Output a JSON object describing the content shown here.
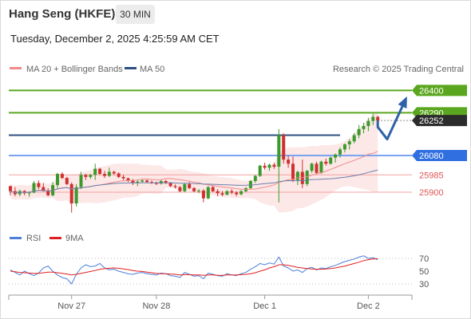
{
  "header": {
    "title": "Hang Seng (HKFE)",
    "interval": "30 MIN",
    "timestamp": "Tuesday, December 2, 2025 4:25:59 AM CET"
  },
  "chart_data": {
    "type": "candlestick",
    "legend": [
      {
        "name": "MA 20 + Bollinger Bands",
        "color": "#f08a8a"
      },
      {
        "name": "MA 50",
        "color": "#2e4f7f"
      }
    ],
    "credit": "Research © 2025 Trading Central",
    "y_range": [
      25810,
      26460
    ],
    "x_ticks": [
      {
        "label": "Nov 27",
        "index": 13
      },
      {
        "label": "Nov 28",
        "index": 31
      },
      {
        "label": "Dec 1",
        "index": 54
      },
      {
        "label": "Dec 2",
        "index": 76
      }
    ],
    "levels": [
      {
        "value": 26400,
        "label": "26400",
        "color": "#5aa61e",
        "style": "line-green"
      },
      {
        "value": 26290,
        "label": "26290",
        "color": "#5aa61e",
        "style": "line-green"
      },
      {
        "value": 26252,
        "label": "26252",
        "color": "#333333",
        "style": "last-price"
      },
      {
        "value": 26080,
        "label": "26080",
        "color": "#2f6fe0",
        "style": "line-blue"
      },
      {
        "value": 25985,
        "label": "25985",
        "color": "#e05555",
        "style": "line-red"
      },
      {
        "value": 25900,
        "label": "25900",
        "color": "#e05555",
        "style": "line-red"
      }
    ],
    "resistance_line": {
      "start_index": 0,
      "end_index": 70,
      "value": 26180
    },
    "forecast": [
      {
        "index": 78,
        "value": 26220
      },
      {
        "index": 80,
        "value": 26160
      },
      {
        "index": 84,
        "value": 26360
      }
    ],
    "candles": [
      [
        25930,
        25932,
        25885,
        25905
      ],
      [
        25905,
        25925,
        25880,
        25890
      ],
      [
        25890,
        25912,
        25880,
        25906
      ],
      [
        25906,
        25910,
        25885,
        25895
      ],
      [
        25895,
        25905,
        25878,
        25898
      ],
      [
        25898,
        25955,
        25895,
        25945
      ],
      [
        25945,
        25958,
        25915,
        25925
      ],
      [
        25925,
        25945,
        25905,
        25905
      ],
      [
        25905,
        25920,
        25880,
        25885
      ],
      [
        25885,
        25950,
        25880,
        25935
      ],
      [
        25935,
        25995,
        25920,
        25990
      ],
      [
        25990,
        25998,
        25965,
        25970
      ],
      [
        25970,
        25975,
        25935,
        25940
      ],
      [
        25940,
        25948,
        25800,
        25845
      ],
      [
        25845,
        25940,
        25830,
        25925
      ],
      [
        25925,
        26000,
        25915,
        25985
      ],
      [
        25985,
        25990,
        25960,
        25975
      ],
      [
        25975,
        25990,
        25965,
        25985
      ],
      [
        25985,
        26040,
        25960,
        26015
      ],
      [
        26015,
        26020,
        25985,
        25990
      ],
      [
        25990,
        26005,
        25970,
        25980
      ],
      [
        25980,
        26020,
        25975,
        26000
      ],
      [
        26000,
        26005,
        25985,
        25992
      ],
      [
        25992,
        25998,
        25970,
        25975
      ],
      [
        25975,
        25985,
        25960,
        25968
      ],
      [
        25968,
        25972,
        25950,
        25958
      ],
      [
        25958,
        25965,
        25935,
        25945
      ],
      [
        25945,
        25960,
        25930,
        25952
      ],
      [
        25952,
        25965,
        25945,
        25958
      ],
      [
        25958,
        25962,
        25948,
        25950
      ],
      [
        25950,
        25958,
        25940,
        25945
      ],
      [
        25945,
        25952,
        25935,
        25942
      ],
      [
        25942,
        25960,
        25938,
        25955
      ],
      [
        25955,
        25960,
        25940,
        25945
      ],
      [
        25945,
        25950,
        25925,
        25930
      ],
      [
        25930,
        25938,
        25918,
        25925
      ],
      [
        25925,
        25930,
        25900,
        25905
      ],
      [
        25905,
        25945,
        25900,
        25940
      ],
      [
        25940,
        25950,
        25915,
        25920
      ],
      [
        25920,
        25925,
        25900,
        25905
      ],
      [
        25905,
        25915,
        25895,
        25908
      ],
      [
        25908,
        25915,
        25850,
        25870
      ],
      [
        25870,
        25930,
        25865,
        25925
      ],
      [
        25925,
        25935,
        25900,
        25905
      ],
      [
        25905,
        25915,
        25880,
        25895
      ],
      [
        25895,
        25905,
        25880,
        25888
      ],
      [
        25888,
        25910,
        25885,
        25905
      ],
      [
        25905,
        25915,
        25890,
        25898
      ],
      [
        25898,
        25905,
        25880,
        25890
      ],
      [
        25890,
        25910,
        25885,
        25905
      ],
      [
        25905,
        25925,
        25900,
        25920
      ],
      [
        25920,
        25960,
        25915,
        25955
      ],
      [
        25955,
        25985,
        25945,
        25980
      ],
      [
        25980,
        26035,
        25975,
        26030
      ],
      [
        26030,
        26045,
        26010,
        26020
      ],
      [
        26020,
        26040,
        26005,
        26035
      ],
      [
        26035,
        26045,
        26015,
        26025
      ],
      [
        26025,
        26210,
        25850,
        26180
      ],
      [
        26180,
        26190,
        26040,
        26060
      ],
      [
        26060,
        26080,
        26020,
        26040
      ],
      [
        26040,
        26075,
        25950,
        25960
      ],
      [
        25960,
        26005,
        25935,
        26000
      ],
      [
        26000,
        26060,
        25920,
        25940
      ],
      [
        25940,
        26010,
        25930,
        26005
      ],
      [
        26005,
        26045,
        25995,
        26040
      ],
      [
        26040,
        26050,
        25990,
        25995
      ],
      [
        25995,
        26055,
        25990,
        26050
      ],
      [
        26050,
        26065,
        26030,
        26040
      ],
      [
        26040,
        26075,
        26035,
        26070
      ],
      [
        26070,
        26090,
        26045,
        26085
      ],
      [
        26085,
        26120,
        26070,
        26110
      ],
      [
        26110,
        26140,
        26095,
        26135
      ],
      [
        26135,
        26160,
        26110,
        26150
      ],
      [
        26150,
        26190,
        26140,
        26180
      ],
      [
        26180,
        26230,
        26165,
        26210
      ],
      [
        26210,
        26240,
        26190,
        26225
      ],
      [
        26225,
        26265,
        26200,
        26250
      ],
      [
        26250,
        26285,
        26230,
        26270
      ],
      [
        26270,
        26275,
        26240,
        26252
      ]
    ],
    "rsi": {
      "legend": [
        {
          "name": "RSI",
          "color": "#4d7fdb"
        },
        {
          "name": "9MA",
          "color": "#e02020"
        }
      ],
      "ticks": [
        70,
        50,
        30
      ],
      "range": [
        20,
        80
      ],
      "rsi_values": [
        52,
        48,
        44,
        50,
        46,
        43,
        47,
        55,
        58,
        50,
        44,
        40,
        38,
        30,
        45,
        55,
        60,
        57,
        58,
        62,
        55,
        52,
        53,
        50,
        48,
        46,
        45,
        47,
        48,
        46,
        45,
        44,
        47,
        46,
        43,
        42,
        40,
        48,
        45,
        42,
        43,
        38,
        47,
        45,
        43,
        42,
        46,
        44,
        43,
        46,
        48,
        53,
        57,
        62,
        60,
        63,
        61,
        72,
        58,
        55,
        50,
        52,
        48,
        54,
        56,
        52,
        55,
        54,
        57,
        59,
        62,
        65,
        67,
        69,
        72,
        74,
        70,
        71,
        68
      ],
      "ma_values": [
        50,
        49,
        48,
        47.5,
        47,
        46.5,
        46.5,
        47.5,
        48.5,
        48.5,
        47.5,
        46.5,
        45.5,
        44,
        45,
        46.5,
        48,
        49.5,
        51,
        53,
        54,
        54.5,
        55,
        54.5,
        53.5,
        52.5,
        51,
        50,
        49.5,
        48.5,
        47.5,
        46.5,
        46,
        46,
        45.5,
        45,
        44,
        44.5,
        44.5,
        44,
        44,
        43.5,
        44,
        44,
        43.5,
        43.5,
        44,
        44,
        44,
        44.5,
        45,
        46,
        47.5,
        50,
        52,
        55,
        57,
        60,
        60,
        59,
        57.5,
        56,
        55,
        54,
        53.5,
        53,
        53,
        53.5,
        54,
        55,
        56.5,
        58,
        60,
        62,
        64,
        66.5,
        68,
        69,
        69.5
      ]
    }
  }
}
